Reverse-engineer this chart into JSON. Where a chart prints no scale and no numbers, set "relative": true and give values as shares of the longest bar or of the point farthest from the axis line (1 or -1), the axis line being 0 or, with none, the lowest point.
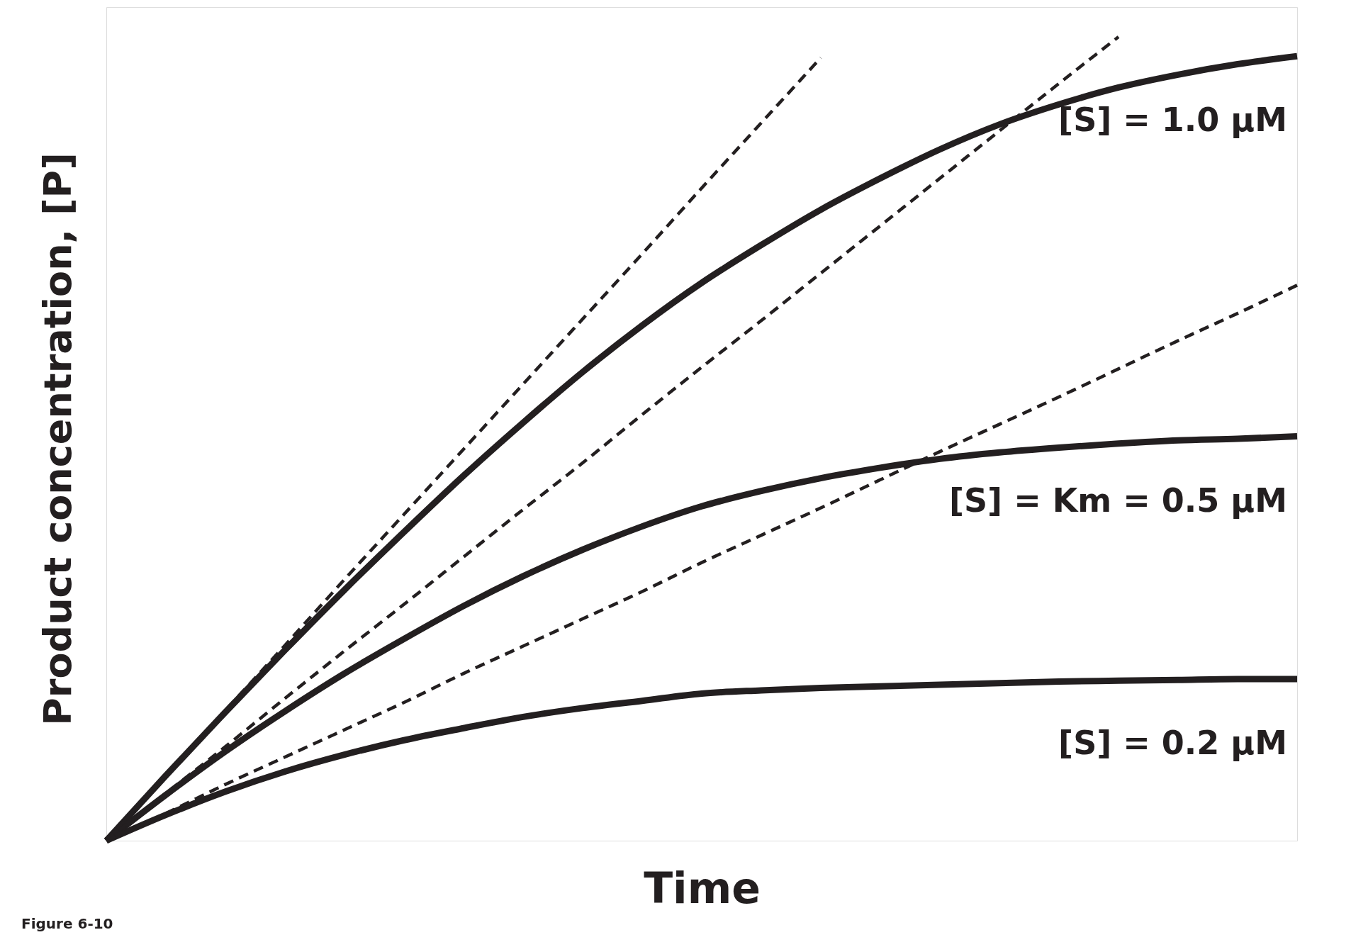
{
  "chart_data": {
    "type": "line",
    "relative": true,
    "xlabel": "Time",
    "ylabel": "Product concentration, [P]",
    "tick_labels": false,
    "grid": false,
    "legend": false,
    "marker": "none",
    "categories": [
      null,
      null,
      null,
      null,
      null,
      null,
      null,
      null,
      null,
      null,
      null,
      null,
      null,
      null,
      null,
      null,
      null,
      null,
      null,
      null,
      null
    ],
    "series": [
      {
        "name": "[S] = 1.0 μM",
        "color": "#231f20",
        "line_style": "solid",
        "values": [
          0,
          0.081,
          0.16,
          0.237,
          0.312,
          0.384,
          0.454,
          0.52,
          0.583,
          0.641,
          0.694,
          0.741,
          0.785,
          0.824,
          0.86,
          0.891,
          0.916,
          0.937,
          0.953,
          0.966,
          0.976
        ]
      },
      {
        "name": "[S] = Km = 0.5 μM",
        "color": "#231f20",
        "line_style": "solid",
        "values": [
          0,
          0.057,
          0.111,
          0.161,
          0.208,
          0.251,
          0.292,
          0.329,
          0.362,
          0.391,
          0.416,
          0.435,
          0.451,
          0.464,
          0.475,
          0.483,
          0.489,
          0.494,
          0.498,
          0.5,
          0.503
        ]
      },
      {
        "name": "[S] = 0.2 μM",
        "color": "#231f20",
        "line_style": "solid",
        "values": [
          0,
          0.032,
          0.061,
          0.086,
          0.107,
          0.125,
          0.14,
          0.154,
          0.165,
          0.174,
          0.183,
          0.187,
          0.19,
          0.192,
          0.194,
          0.196,
          0.198,
          0.199,
          0.2,
          0.201,
          0.201
        ]
      },
      {
        "color": "#231f20",
        "line_style": "dashed",
        "values": [
          0,
          0.081,
          0.162,
          0.243,
          0.325,
          0.406,
          0.487,
          0.568,
          0.649,
          0.73,
          0.812,
          0.893,
          0.974,
          null,
          null,
          null,
          null,
          null,
          null,
          null,
          null
        ]
      },
      {
        "color": "#231f20",
        "line_style": "dashed",
        "values": [
          0,
          0.059,
          0.117,
          0.177,
          0.236,
          0.294,
          0.353,
          0.412,
          0.47,
          0.53,
          0.589,
          0.647,
          0.706,
          0.765,
          0.824,
          0.883,
          0.942,
          1.0,
          null,
          null,
          null
        ]
      },
      {
        "color": "#231f20",
        "line_style": "dashed",
        "values": [
          0,
          0.034,
          0.07,
          0.104,
          0.138,
          0.172,
          0.208,
          0.242,
          0.276,
          0.31,
          0.346,
          0.38,
          0.414,
          0.449,
          0.484,
          0.518,
          0.552,
          0.587,
          0.622,
          0.656,
          0.691
        ]
      }
    ],
    "annotations": [
      "Figure 6-10"
    ]
  }
}
